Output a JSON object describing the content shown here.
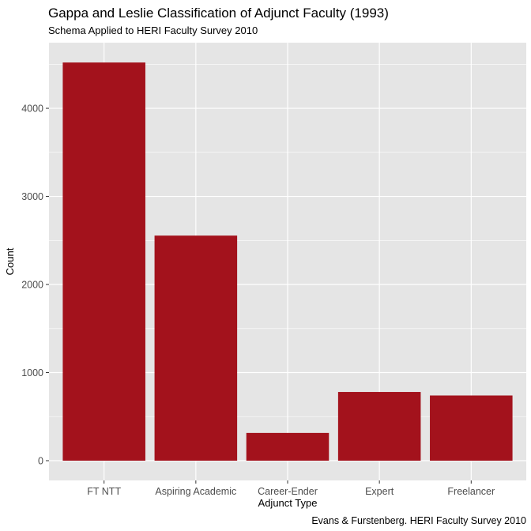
{
  "chart_data": {
    "type": "bar",
    "title": "Gappa and Leslie Classification of Adjunct Faculty (1993)",
    "subtitle": "Schema Applied to HERI Faculty Survey 2010",
    "xlabel": "Adjunct Type",
    "ylabel": "Count",
    "caption": "Evans & Furstenberg. HERI Faculty Survey 2010",
    "categories": [
      "FT NTT",
      "Aspiring Academic",
      "Career-Ender",
      "Expert",
      "Freelancer"
    ],
    "values": [
      4520,
      2555,
      315,
      780,
      740
    ],
    "ylim": [
      0,
      4745
    ],
    "yticks": [
      0,
      1000,
      2000,
      3000,
      4000
    ],
    "grid": true,
    "bar_color": "#a3121c",
    "panel_color": "#e5e5e5",
    "grid_color": "#ffffff"
  }
}
